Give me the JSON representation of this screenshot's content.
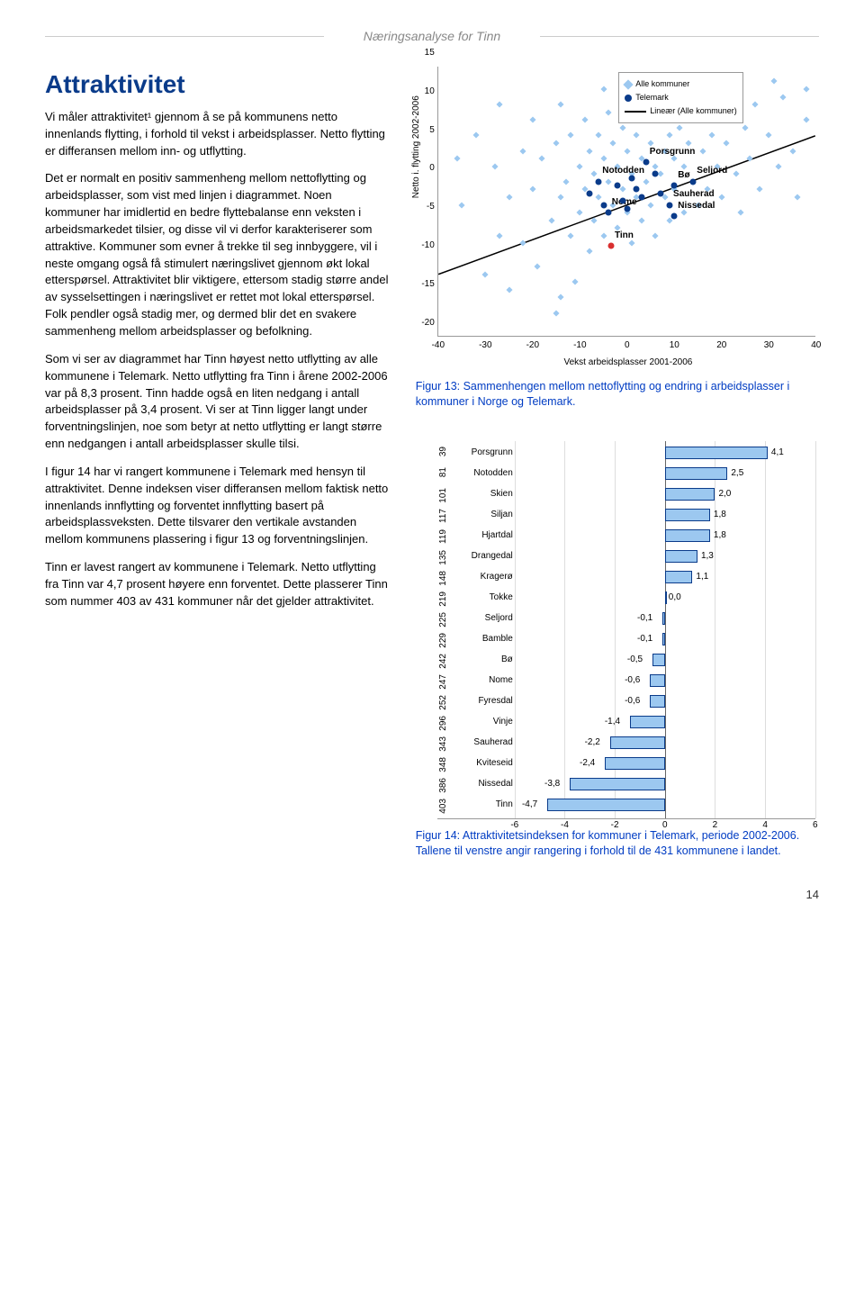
{
  "header": {
    "title": "Næringsanalyse for Tinn"
  },
  "heading": "Attraktivitet",
  "paragraphs": [
    "Vi måler attraktivitet¹ gjennom å se på kommunens netto innenlands flytting, i forhold til vekst i arbeidsplasser. Netto flytting er differansen mellom inn- og utflytting.",
    "Det er normalt en positiv sammenheng mellom nettoflytting og arbeidsplasser, som vist med linjen i diagrammet. Noen kommuner har imidlertid en bedre flyttebalanse enn veksten i arbeidsmarkedet tilsier, og disse vil vi derfor karakteriserer som attraktive. Kommuner som evner å trekke til seg innbyggere, vil i neste omgang også få stimulert næringslivet gjennom økt lokal etterspørsel. Attraktivitet blir viktigere, ettersom stadig større andel av sysselsettingen i næringslivet er rettet mot lokal etterspørsel. Folk pendler også stadig mer, og dermed blir det en svakere sammenheng mellom arbeidsplasser og befolkning.",
    "Som vi ser av diagrammet har Tinn høyest netto utflytting av alle kommunene i Telemark. Netto utflytting fra Tinn i årene 2002-2006 var på 8,3 prosent. Tinn hadde også en liten nedgang i antall arbeidsplasser på 3,4 prosent. Vi ser at Tinn ligger langt under forventningslinjen, noe som betyr at netto utflytting er langt større enn nedgangen i antall arbeidsplasser skulle tilsi.",
    "I figur 14 har vi rangert kommunene i Telemark med hensyn til attraktivitet. Denne indeksen viser differansen mellom faktisk netto innenlands innflytting og forventet innflytting basert på arbeidsplassveksten. Dette tilsvarer den vertikale avstanden mellom kommunens plassering i figur 13 og forventningslinjen.",
    "Tinn er lavest rangert av kommunene i Telemark. Netto utflytting fra Tinn var 4,7 prosent høyere enn forventet. Dette plasserer Tinn som nummer 403 av 431 kommuner når det gjelder attraktivitet."
  ],
  "scatter": {
    "ylabel": "Netto i. flytting 2002-2006",
    "xlabel": "Vekst arbeidsplasser 2001-2006",
    "xlim": [
      -40,
      40
    ],
    "ylim": [
      -20,
      15
    ],
    "yticks": [
      -20,
      -15,
      -10,
      -5,
      0,
      5,
      10,
      15
    ],
    "xticks": [
      -40,
      -30,
      -20,
      -10,
      0,
      10,
      20,
      30,
      40
    ],
    "legend": {
      "all": "Alle kommuner",
      "tm": "Telemark",
      "line": "Lineær (Alle kommuner)"
    },
    "all_color": "#9cc8f0",
    "tm_color": "#0a3b8a",
    "tinn_color": "#d93030",
    "all_points": [
      [
        -36,
        3
      ],
      [
        -35,
        -3
      ],
      [
        -32,
        6
      ],
      [
        -30,
        -12
      ],
      [
        -28,
        2
      ],
      [
        -27,
        -7
      ],
      [
        -27,
        10
      ],
      [
        -25,
        -2
      ],
      [
        -25,
        -14
      ],
      [
        -22,
        4
      ],
      [
        -22,
        -8
      ],
      [
        -20,
        -1
      ],
      [
        -20,
        8
      ],
      [
        -19,
        -11
      ],
      [
        -18,
        3
      ],
      [
        -16,
        -5
      ],
      [
        -15,
        -17
      ],
      [
        -15,
        5
      ],
      [
        -14,
        -2
      ],
      [
        -14,
        10
      ],
      [
        -13,
        0
      ],
      [
        -12,
        -7
      ],
      [
        -12,
        6
      ],
      [
        -11,
        -13
      ],
      [
        -10,
        2
      ],
      [
        -10,
        -4
      ],
      [
        -9,
        8
      ],
      [
        -9,
        -1
      ],
      [
        -8,
        4
      ],
      [
        -8,
        -9
      ],
      [
        -7,
        1
      ],
      [
        -7,
        -5
      ],
      [
        -6,
        6
      ],
      [
        -6,
        -2
      ],
      [
        -5,
        3
      ],
      [
        -5,
        -7
      ],
      [
        -4,
        9
      ],
      [
        -4,
        0
      ],
      [
        -3,
        5
      ],
      [
        -3,
        -3
      ],
      [
        -2,
        2
      ],
      [
        -2,
        -6
      ],
      [
        -1,
        7
      ],
      [
        -1,
        -1
      ],
      [
        0,
        4
      ],
      [
        0,
        -4
      ],
      [
        1,
        1
      ],
      [
        1,
        -8
      ],
      [
        2,
        6
      ],
      [
        2,
        -2
      ],
      [
        3,
        3
      ],
      [
        3,
        -5
      ],
      [
        4,
        8
      ],
      [
        4,
        0
      ],
      [
        5,
        5
      ],
      [
        5,
        -3
      ],
      [
        6,
        2
      ],
      [
        6,
        -7
      ],
      [
        7,
        9
      ],
      [
        7,
        1
      ],
      [
        8,
        4
      ],
      [
        8,
        -2
      ],
      [
        9,
        6
      ],
      [
        9,
        -5
      ],
      [
        10,
        3
      ],
      [
        10,
        -1
      ],
      [
        11,
        7
      ],
      [
        12,
        2
      ],
      [
        12,
        -4
      ],
      [
        13,
        5
      ],
      [
        14,
        0
      ],
      [
        15,
        8
      ],
      [
        15,
        -3
      ],
      [
        16,
        4
      ],
      [
        17,
        -1
      ],
      [
        18,
        6
      ],
      [
        19,
        2
      ],
      [
        20,
        -2
      ],
      [
        21,
        5
      ],
      [
        22,
        9
      ],
      [
        23,
        1
      ],
      [
        24,
        -4
      ],
      [
        25,
        7
      ],
      [
        26,
        3
      ],
      [
        28,
        -1
      ],
      [
        30,
        6
      ],
      [
        32,
        2
      ],
      [
        33,
        11
      ],
      [
        35,
        4
      ],
      [
        36,
        -2
      ],
      [
        38,
        8
      ],
      [
        38,
        12
      ],
      [
        22,
        12
      ],
      [
        27,
        10
      ],
      [
        31,
        13
      ],
      [
        -5,
        12
      ],
      [
        -14,
        -15
      ],
      [
        18,
        11
      ]
    ],
    "tm_points": [
      {
        "x": 4,
        "y": 2.5,
        "label": "Porsgrunn"
      },
      {
        "x": -6,
        "y": 0,
        "label": "Notodden"
      },
      {
        "x": 14,
        "y": 0,
        "label": "Seljord"
      },
      {
        "x": 10,
        "y": -0.5,
        "label": "Bø"
      },
      {
        "x": 9,
        "y": -3,
        "label": "Sauherad"
      },
      {
        "x": 10,
        "y": -4.5,
        "label": "Nissedal"
      },
      {
        "x": -4,
        "y": -4,
        "label": "Nome"
      },
      {
        "x": -3.4,
        "y": -8.3,
        "label": "Tinn",
        "highlight": true
      },
      {
        "x": -2,
        "y": -0.5,
        "label": ""
      },
      {
        "x": 2,
        "y": -1,
        "label": ""
      },
      {
        "x": 6,
        "y": 1,
        "label": ""
      },
      {
        "x": 3,
        "y": -2,
        "label": ""
      },
      {
        "x": -1,
        "y": -2.5,
        "label": ""
      },
      {
        "x": 7,
        "y": -1.5,
        "label": ""
      },
      {
        "x": -5,
        "y": -3,
        "label": ""
      },
      {
        "x": 1,
        "y": 0.5,
        "label": ""
      },
      {
        "x": -8,
        "y": -1.5,
        "label": ""
      },
      {
        "x": 0,
        "y": -3.5,
        "label": ""
      }
    ],
    "trend": {
      "x1": -40,
      "y1": -12,
      "x2": 40,
      "y2": 6
    },
    "caption": "Figur 13: Sammenhengen mellom nettoflytting og endring i arbeidsplasser i kommuner i Norge og Telemark."
  },
  "bars": {
    "xlim": [
      -6,
      6
    ],
    "xticks": [
      -6,
      -4,
      -2,
      0,
      2,
      4,
      6
    ],
    "bar_color": "#9cc8f0",
    "bar_border": "#0a3b8a",
    "items": [
      {
        "rank": "39",
        "name": "Porsgrunn",
        "val": 4.1,
        "label": "4,1"
      },
      {
        "rank": "81",
        "name": "Notodden",
        "val": 2.5,
        "label": "2,5"
      },
      {
        "rank": "101",
        "name": "Skien",
        "val": 2.0,
        "label": "2,0"
      },
      {
        "rank": "117",
        "name": "Siljan",
        "val": 1.8,
        "label": "1,8"
      },
      {
        "rank": "119",
        "name": "Hjartdal",
        "val": 1.8,
        "label": "1,8"
      },
      {
        "rank": "135",
        "name": "Drangedal",
        "val": 1.3,
        "label": "1,3"
      },
      {
        "rank": "148",
        "name": "Kragerø",
        "val": 1.1,
        "label": "1,1"
      },
      {
        "rank": "219",
        "name": "Tokke",
        "val": 0.0,
        "label": "0,0"
      },
      {
        "rank": "225",
        "name": "Seljord",
        "val": -0.1,
        "label": "-0,1"
      },
      {
        "rank": "229",
        "name": "Bamble",
        "val": -0.1,
        "label": "-0,1"
      },
      {
        "rank": "242",
        "name": "Bø",
        "val": -0.5,
        "label": "-0,5"
      },
      {
        "rank": "247",
        "name": "Nome",
        "val": -0.6,
        "label": "-0,6"
      },
      {
        "rank": "252",
        "name": "Fyresdal",
        "val": -0.6,
        "label": "-0,6"
      },
      {
        "rank": "296",
        "name": "Vinje",
        "val": -1.4,
        "label": "-1,4"
      },
      {
        "rank": "343",
        "name": "Sauherad",
        "val": -2.2,
        "label": "-2,2"
      },
      {
        "rank": "348",
        "name": "Kviteseid",
        "val": -2.4,
        "label": "-2,4"
      },
      {
        "rank": "386",
        "name": "Nissedal",
        "val": -3.8,
        "label": "-3,8"
      },
      {
        "rank": "403",
        "name": "Tinn",
        "val": -4.7,
        "label": "-4,7"
      }
    ],
    "caption": "Figur 14: Attraktivitetsindeksen for kommuner i Telemark, periode 2002-2006. Tallene til venstre angir rangering i forhold til de 431 kommunene i landet."
  },
  "page_number": "14"
}
